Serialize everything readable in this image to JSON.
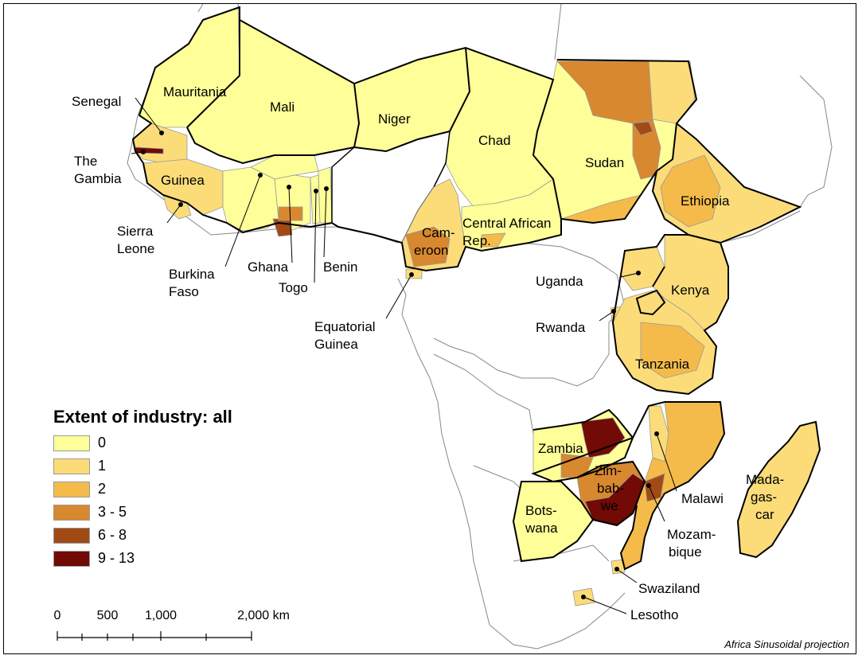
{
  "map": {
    "legend": {
      "title": "Extent of industry: all",
      "classes": [
        {
          "label": "0",
          "color": "#ffff99"
        },
        {
          "label": "1",
          "color": "#fbdc79"
        },
        {
          "label": "2",
          "color": "#f4bb4b"
        },
        {
          "label": "3 - 5",
          "color": "#d8882f"
        },
        {
          "label": "6 - 8",
          "color": "#a24a16"
        },
        {
          "label": "9 - 13",
          "color": "#720a06"
        }
      ]
    },
    "scale": {
      "unit": "km",
      "ticks": [
        "0",
        "500",
        "1,000",
        "2,000 km"
      ]
    },
    "projection": "Africa Sinusoidal projection",
    "countries": [
      {
        "id": "mauritania",
        "label": [
          "Mauritania"
        ]
      },
      {
        "id": "mali",
        "label": [
          "Mali"
        ]
      },
      {
        "id": "niger",
        "label": [
          "Niger"
        ]
      },
      {
        "id": "chad",
        "label": [
          "Chad"
        ]
      },
      {
        "id": "sudan",
        "label": [
          "Sudan"
        ]
      },
      {
        "id": "ethiopia",
        "label": [
          "Ethiopia"
        ]
      },
      {
        "id": "senegal",
        "label": [
          "Senegal"
        ]
      },
      {
        "id": "gambia",
        "label": [
          "The",
          "Gambia"
        ]
      },
      {
        "id": "guinea",
        "label": [
          "Guinea"
        ]
      },
      {
        "id": "sierra-leone",
        "label": [
          "Sierra",
          "Leone"
        ]
      },
      {
        "id": "burkina-faso",
        "label": [
          "Burkina",
          "Faso"
        ]
      },
      {
        "id": "ghana",
        "label": [
          "Ghana"
        ]
      },
      {
        "id": "togo",
        "label": [
          "Togo"
        ]
      },
      {
        "id": "benin",
        "label": [
          "Benin"
        ]
      },
      {
        "id": "cameroon",
        "label": [
          "Cam-",
          "eroon"
        ]
      },
      {
        "id": "equatorial-guinea",
        "label": [
          "Equatorial",
          "Guinea"
        ]
      },
      {
        "id": "car",
        "label": [
          "Central African",
          "Rep."
        ]
      },
      {
        "id": "uganda",
        "label": [
          "Uganda"
        ]
      },
      {
        "id": "kenya",
        "label": [
          "Kenya"
        ]
      },
      {
        "id": "rwanda",
        "label": [
          "Rwanda"
        ]
      },
      {
        "id": "tanzania",
        "label": [
          "Tanzania"
        ]
      },
      {
        "id": "zambia",
        "label": [
          "Zambia"
        ]
      },
      {
        "id": "zimbabwe",
        "label": [
          "Zim-",
          "bab-",
          "we"
        ]
      },
      {
        "id": "malawi",
        "label": [
          "Malawi"
        ]
      },
      {
        "id": "mozambique",
        "label": [
          "Mozam-",
          "bique"
        ]
      },
      {
        "id": "botswana",
        "label": [
          "Bots-",
          "wana"
        ]
      },
      {
        "id": "madagascar",
        "label": [
          "Mada-",
          "gas-",
          "car"
        ]
      },
      {
        "id": "swaziland",
        "label": [
          "Swaziland"
        ]
      },
      {
        "id": "lesotho",
        "label": [
          "Lesotho"
        ]
      }
    ]
  }
}
